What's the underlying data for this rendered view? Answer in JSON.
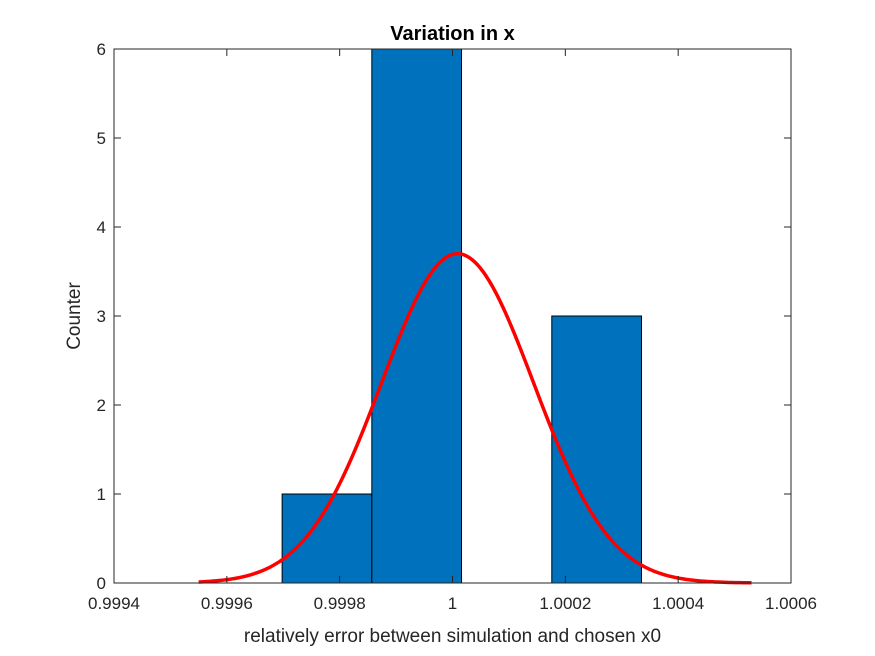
{
  "chart_data": {
    "type": "bar",
    "title": "Variation in x",
    "xlabel": "relatively error between simulation and chosen x0",
    "ylabel": "Counter",
    "xlim": [
      0.9994,
      1.0006
    ],
    "ylim": [
      0,
      6
    ],
    "xticks": [
      0.9994,
      0.9996,
      0.9998,
      1,
      1.0002,
      1.0004,
      1.0006
    ],
    "xtick_labels": [
      "0.9994",
      "0.9996",
      "0.9998",
      "1",
      "1.0002",
      "1.0004",
      "1.0006"
    ],
    "yticks": [
      0,
      1,
      2,
      3,
      4,
      5,
      6
    ],
    "ytick_labels": [
      "0",
      "1",
      "2",
      "3",
      "4",
      "5",
      "6"
    ],
    "grid": false,
    "histogram": {
      "bins": [
        {
          "start": 0.999698,
          "end": 0.999857,
          "count": 1
        },
        {
          "start": 0.999857,
          "end": 1.000016,
          "count": 6
        },
        {
          "start": 1.000016,
          "end": 1.000176,
          "count": 0
        },
        {
          "start": 1.000176,
          "end": 1.000335,
          "count": 3
        }
      ],
      "color": "#0072bd"
    },
    "fit_curve": {
      "type": "normal",
      "mean": 1.000009,
      "sigma": 0.000135,
      "peak": 3.7,
      "range": [
        0.99955,
        1.00053
      ],
      "color": "#ff0000"
    }
  }
}
